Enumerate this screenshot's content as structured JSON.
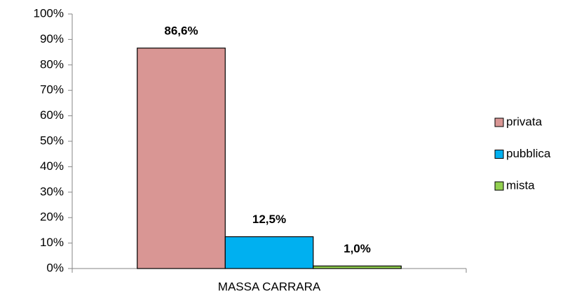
{
  "chart_data": {
    "type": "bar",
    "categories": [
      "MASSA CARRARA"
    ],
    "series": [
      {
        "name": "privata",
        "color": "#d99694",
        "values": [
          86.6
        ],
        "value_labels": [
          "86,6%"
        ]
      },
      {
        "name": "pubblica",
        "color": "#00b0f0",
        "values": [
          12.5
        ],
        "value_labels": [
          "12,5%"
        ]
      },
      {
        "name": "mista",
        "color": "#92d050",
        "values": [
          1.0
        ],
        "value_labels": [
          "1,0%"
        ]
      }
    ],
    "ylim": [
      0,
      100
    ],
    "yticks": [
      {
        "value": 0,
        "label": "0%"
      },
      {
        "value": 10,
        "label": "10%"
      },
      {
        "value": 20,
        "label": "20%"
      },
      {
        "value": 30,
        "label": "30%"
      },
      {
        "value": 40,
        "label": "40%"
      },
      {
        "value": 50,
        "label": "50%"
      },
      {
        "value": 60,
        "label": "60%"
      },
      {
        "value": 70,
        "label": "70%"
      },
      {
        "value": 80,
        "label": "80%"
      },
      {
        "value": 90,
        "label": "90%"
      },
      {
        "value": 100,
        "label": "100%"
      }
    ],
    "grid": false,
    "legend": "right"
  }
}
